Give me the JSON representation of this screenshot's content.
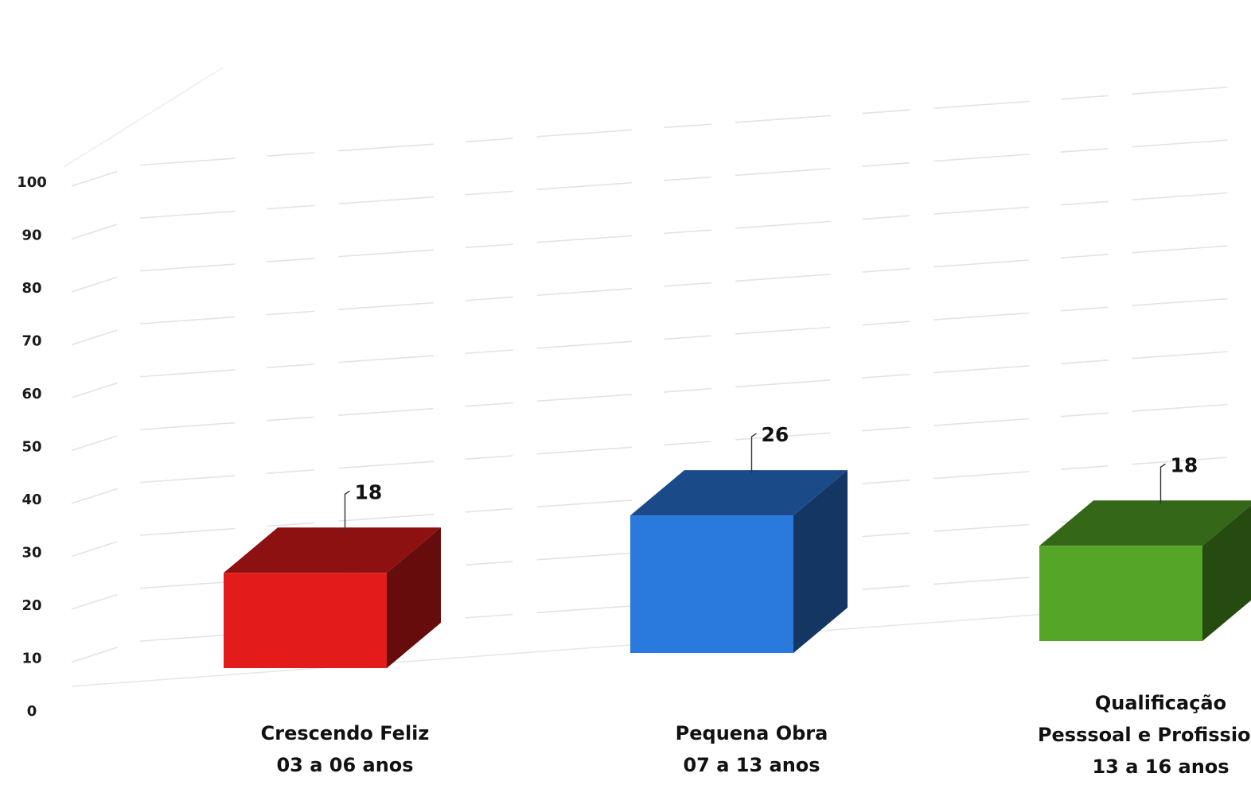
{
  "chart_data": {
    "type": "bar",
    "title": "",
    "xlabel": "",
    "ylabel": "",
    "ylim": [
      0,
      100
    ],
    "yticks": [
      0,
      10,
      20,
      30,
      40,
      50,
      60,
      70,
      80,
      90,
      100
    ],
    "grid": true,
    "legend": "none",
    "style": "3d-columns",
    "categories": [
      [
        "Crescendo Feliz",
        "03 a 06 anos"
      ],
      [
        "Pequena Obra",
        "07 a 13 anos"
      ],
      [
        "Qualificação",
        "Pesssoal e Profissional",
        "13 a 16 anos"
      ]
    ],
    "values": [
      18,
      26,
      18
    ],
    "data_labels": [
      "18",
      "26",
      "18"
    ],
    "colors": [
      "#e41b1b",
      "#2a79dc",
      "#55a626"
    ]
  }
}
